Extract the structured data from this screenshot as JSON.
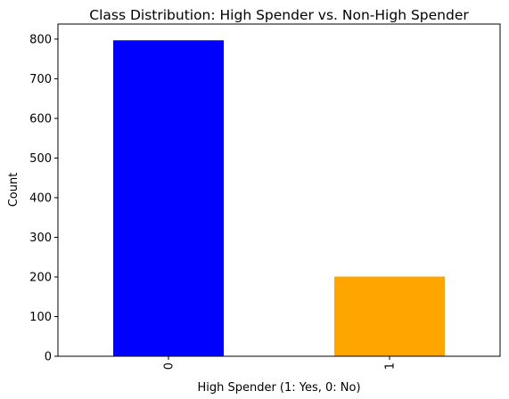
{
  "chart_data": {
    "type": "bar",
    "title": "Class Distribution: High Spender vs. Non-High Spender",
    "xlabel": "High Spender (1: Yes, 0: No)",
    "ylabel": "Count",
    "categories": [
      "0",
      "1"
    ],
    "values": [
      797,
      201
    ],
    "colors": [
      "#0000ff",
      "#ffa500"
    ],
    "ylim": [
      0,
      838
    ],
    "yticks": [
      0,
      100,
      200,
      300,
      400,
      500,
      600,
      700,
      800
    ],
    "xtick_rotation": "vertical",
    "grid": false,
    "legend": "none"
  }
}
